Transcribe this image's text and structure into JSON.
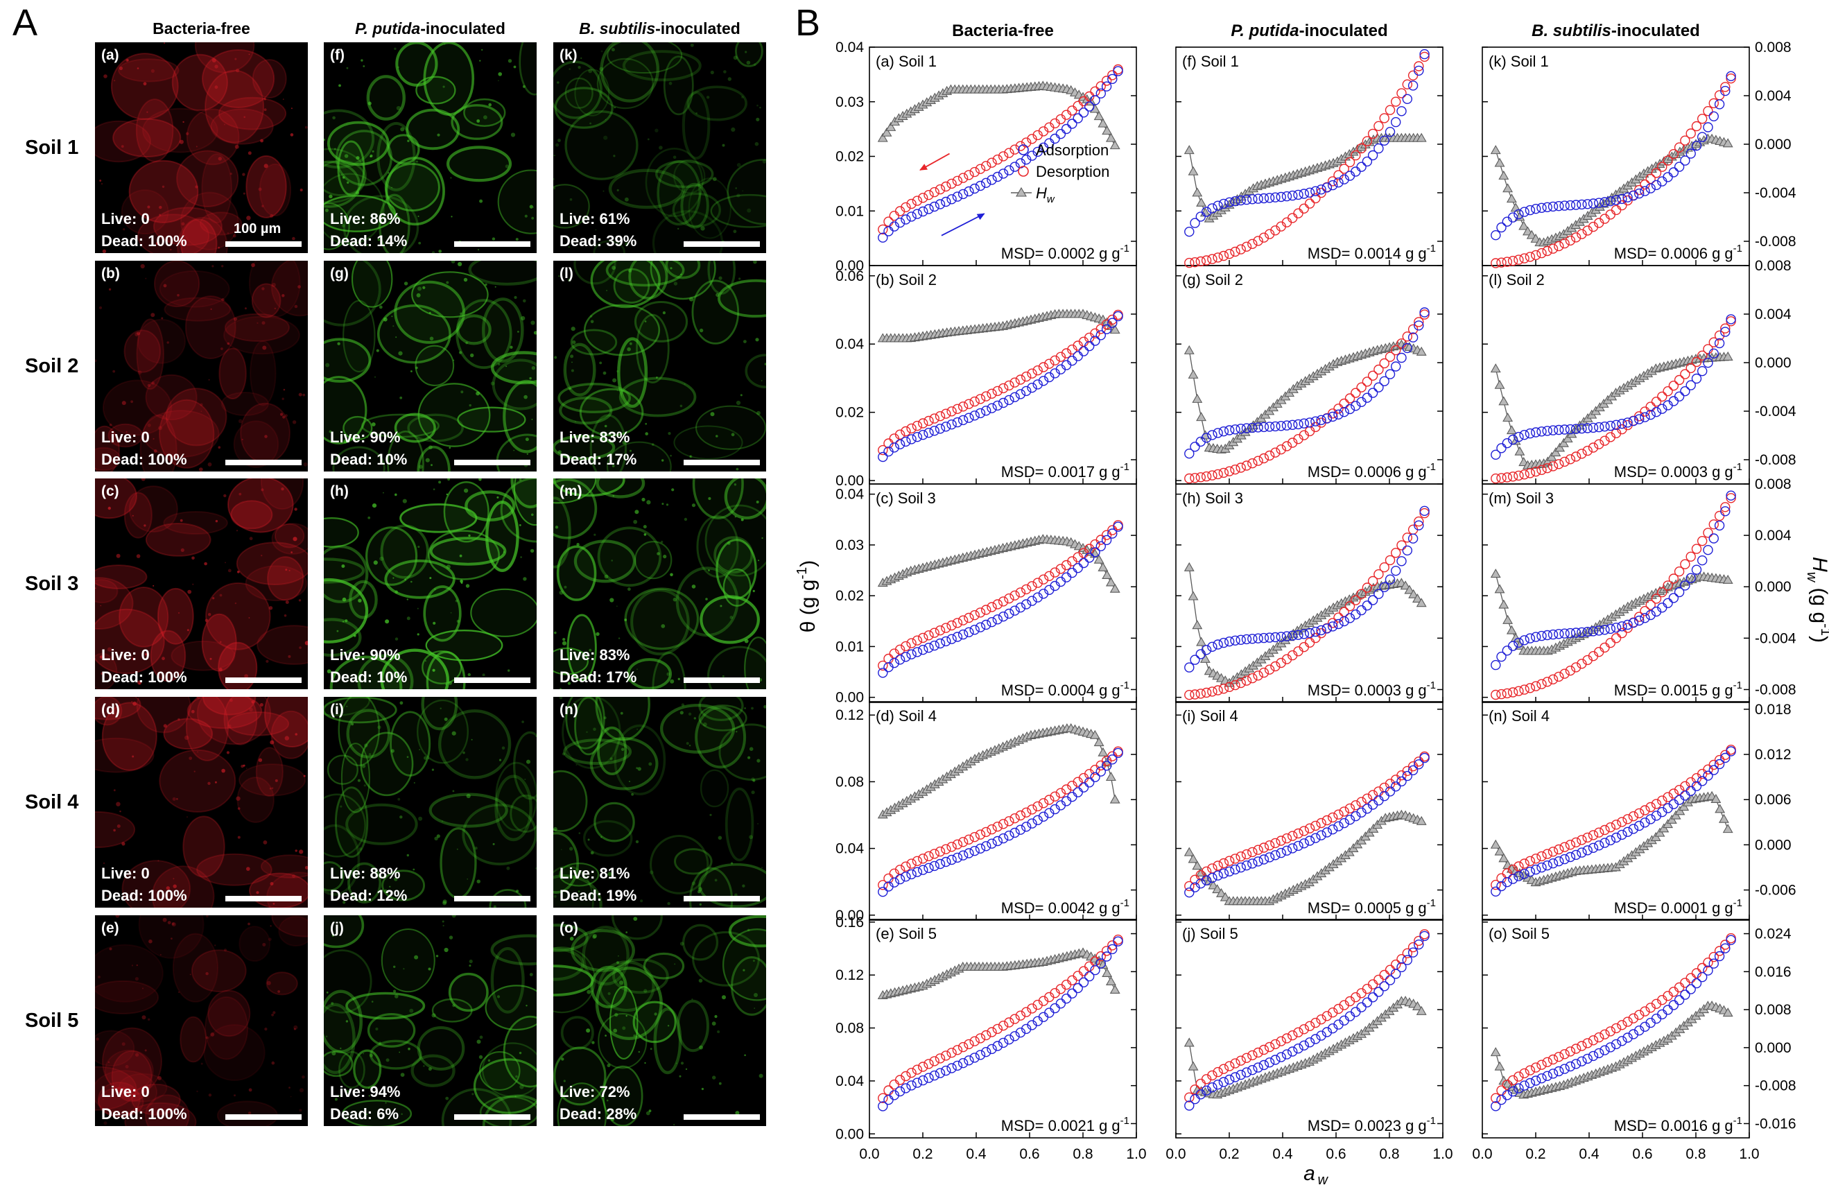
{
  "panel_labels": {
    "A": "A",
    "B": "B"
  },
  "col_headers": [
    {
      "pre": "",
      "italic": "",
      "post": "Bacteria-free"
    },
    {
      "pre": "",
      "italic": "P. putida",
      "post": "-inoculated"
    },
    {
      "pre": "",
      "italic": "B. subtilis",
      "post": "-inoculated"
    }
  ],
  "row_labels": [
    "Soil 1",
    "Soil 2",
    "Soil 3",
    "Soil 4",
    "Soil 5"
  ],
  "scale_bar_label": "100 µm",
  "micrographs": [
    {
      "id": "(a)",
      "col": 0,
      "row": 0,
      "live": "Live: 0",
      "dead": "Dead: 100%",
      "stain": "red",
      "intensity": 0.75
    },
    {
      "id": "(b)",
      "col": 0,
      "row": 1,
      "live": "Live: 0",
      "dead": "Dead: 100%",
      "stain": "red",
      "intensity": 0.55
    },
    {
      "id": "(c)",
      "col": 0,
      "row": 2,
      "live": "Live: 0",
      "dead": "Dead: 100%",
      "stain": "red",
      "intensity": 0.85
    },
    {
      "id": "(d)",
      "col": 0,
      "row": 3,
      "live": "Live: 0",
      "dead": "Dead: 100%",
      "stain": "red",
      "intensity": 0.8
    },
    {
      "id": "(e)",
      "col": 0,
      "row": 4,
      "live": "Live: 0",
      "dead": "Dead: 100%",
      "stain": "red",
      "intensity": 0.45
    },
    {
      "id": "(f)",
      "col": 1,
      "row": 0,
      "live": "Live: 86%",
      "dead": "Dead: 14%",
      "stain": "green",
      "intensity": 0.85
    },
    {
      "id": "(g)",
      "col": 1,
      "row": 1,
      "live": "Live: 90%",
      "dead": "Dead: 10%",
      "stain": "green",
      "intensity": 0.85
    },
    {
      "id": "(h)",
      "col": 1,
      "row": 2,
      "live": "Live: 90%",
      "dead": "Dead: 10%",
      "stain": "green",
      "intensity": 1.0
    },
    {
      "id": "(i)",
      "col": 1,
      "row": 3,
      "live": "Live: 88%",
      "dead": "Dead: 12%",
      "stain": "green",
      "intensity": 0.65
    },
    {
      "id": "(j)",
      "col": 1,
      "row": 4,
      "live": "Live: 94%",
      "dead": "Dead: 6%",
      "stain": "green",
      "intensity": 0.75
    },
    {
      "id": "(k)",
      "col": 2,
      "row": 0,
      "live": "Live: 61%",
      "dead": "Dead: 39%",
      "stain": "green",
      "intensity": 0.45
    },
    {
      "id": "(l)",
      "col": 2,
      "row": 1,
      "live": "Live: 83%",
      "dead": "Dead: 17%",
      "stain": "green",
      "intensity": 0.75
    },
    {
      "id": "(m)",
      "col": 2,
      "row": 2,
      "live": "Live: 83%",
      "dead": "Dead: 17%",
      "stain": "green",
      "intensity": 0.9
    },
    {
      "id": "(n)",
      "col": 2,
      "row": 3,
      "live": "Live: 81%",
      "dead": "Dead: 19%",
      "stain": "green",
      "intensity": 0.6
    },
    {
      "id": "(o)",
      "col": 2,
      "row": 4,
      "live": "Live: 72%",
      "dead": "Dead: 28%",
      "stain": "green",
      "intensity": 0.8
    }
  ],
  "chart_data": {
    "type": "scatter",
    "xlabel": "a",
    "xlabel_sub": "w",
    "ylabel_left": "θ (g g",
    "ylabel_left_sup": "-1",
    "ylabel_left_end": ")",
    "ylabel_right": "H",
    "ylabel_right_sub": "w",
    "ylabel_right_mid": " (g g",
    "ylabel_right_sup": "-1",
    "ylabel_right_end": ")",
    "xlim": [
      0.0,
      1.0
    ],
    "xticks": [
      0.0,
      0.2,
      0.4,
      0.6,
      0.8,
      1.0
    ],
    "xtick_labels": [
      "0.0",
      "0.2",
      "0.4",
      "0.6",
      "0.8",
      "1.0"
    ],
    "legend": {
      "placement": "panel (a), right of center",
      "adsorption": "Adsorption",
      "desorption": "Desorption",
      "hw": "H",
      "hw_sub": "w"
    },
    "colors": {
      "adsorption": "#1f1fd6",
      "desorption": "#e8262a",
      "hw": "#5a5a5a",
      "hw_fill": "#b8b8b8",
      "arrow_red": "#e8262a",
      "arrow_blue": "#1f1fd6"
    },
    "msd_prefix": "MSD= ",
    "msd_unit": " g g",
    "msd_unit_sup": "-1",
    "rows": [
      {
        "soil": "Soil 1",
        "ylim": [
          0.0,
          0.04
        ],
        "yticks": [
          "0.00",
          "0.01",
          "0.02",
          "0.03",
          "0.04"
        ],
        "yvals": [
          0,
          0.01,
          0.02,
          0.03,
          0.04
        ],
        "y2lim": [
          -0.01,
          0.008
        ],
        "y2ticks": [
          "-0.008",
          "-0.004",
          "0.000",
          "0.004",
          "0.008"
        ],
        "y2vals": [
          -0.008,
          -0.004,
          0,
          0.004,
          0.008
        ]
      },
      {
        "soil": "Soil 2",
        "ylim": [
          -0.001,
          0.063
        ],
        "yticks": [
          "0.00",
          "0.02",
          "0.04",
          "0.06"
        ],
        "yvals": [
          0,
          0.02,
          0.04,
          0.06
        ],
        "y2lim": [
          -0.01,
          0.008
        ],
        "y2ticks": [
          "-0.008",
          "-0.004",
          "0.000",
          "0.004",
          "0.008"
        ],
        "y2vals": [
          -0.008,
          -0.004,
          0,
          0.004,
          0.008
        ]
      },
      {
        "soil": "Soil 3",
        "ylim": [
          -0.001,
          0.042
        ],
        "yticks": [
          "0.00",
          "0.01",
          "0.02",
          "0.03",
          "0.04"
        ],
        "yvals": [
          0,
          0.01,
          0.02,
          0.03,
          0.04
        ],
        "y2lim": [
          -0.009,
          0.008
        ],
        "y2ticks": [
          "-0.008",
          "-0.004",
          "0.000",
          "0.004",
          "0.008"
        ],
        "y2vals": [
          -0.008,
          -0.004,
          0,
          0.004,
          0.008
        ]
      },
      {
        "soil": "Soil 4",
        "ylim": [
          -0.003,
          0.128
        ],
        "yticks": [
          "0.00",
          "0.04",
          "0.08",
          "0.12"
        ],
        "yvals": [
          0,
          0.04,
          0.08,
          0.12
        ],
        "y2lim": [
          -0.01,
          0.019
        ],
        "y2ticks": [
          "-0.006",
          "0.000",
          "0.006",
          "0.012",
          "0.018"
        ],
        "y2vals": [
          -0.006,
          0,
          0.006,
          0.012,
          0.018
        ]
      },
      {
        "soil": "Soil 5",
        "ylim": [
          -0.003,
          0.162
        ],
        "yticks": [
          "0.00",
          "0.04",
          "0.08",
          "0.12",
          "0.16"
        ],
        "yvals": [
          0,
          0.04,
          0.08,
          0.12,
          0.16
        ],
        "y2lim": [
          -0.019,
          0.027
        ],
        "y2ticks": [
          "-0.016",
          "-0.008",
          "0.000",
          "0.008",
          "0.016",
          "0.024"
        ],
        "y2vals": [
          -0.016,
          -0.008,
          0,
          0.008,
          0.016,
          0.024
        ]
      }
    ],
    "panels": [
      {
        "label": "(a) Soil 1",
        "col": 0,
        "row": 0,
        "msd": "0.0002",
        "theta_max": 0.0355,
        "ads_mid": 0.43,
        "des_mid": 0.52,
        "ads_k": 3.0,
        "des_k": 2.6,
        "hw": [
          [
            0.05,
            0.0005
          ],
          [
            0.1,
            0.002
          ],
          [
            0.3,
            0.0045
          ],
          [
            0.5,
            0.0045
          ],
          [
            0.65,
            0.0048
          ],
          [
            0.75,
            0.0045
          ],
          [
            0.83,
            0.0035
          ],
          [
            0.88,
            0.0015
          ],
          [
            0.93,
            -0.0005
          ]
        ],
        "legend": true,
        "arrows": true
      },
      {
        "label": "(f) Soil 1",
        "col": 1,
        "row": 0,
        "msd": "0.0014",
        "theta_max": 0.0385,
        "ads_mid": 0.5,
        "des_mid": 0.44,
        "ads_k": 5.0,
        "des_k": 3.2,
        "hw": [
          [
            0.05,
            -0.0005
          ],
          [
            0.08,
            -0.004
          ],
          [
            0.12,
            -0.0062
          ],
          [
            0.2,
            -0.005
          ],
          [
            0.3,
            -0.0035
          ],
          [
            0.45,
            -0.0025
          ],
          [
            0.6,
            -0.0015
          ],
          [
            0.75,
            0.0005
          ],
          [
            0.85,
            0.0005
          ],
          [
            0.93,
            0.0005
          ]
        ],
        "steep_ads": true
      },
      {
        "label": "(k) Soil 1",
        "col": 2,
        "row": 0,
        "msd": "0.0006",
        "theta_max": 0.0345,
        "ads_mid": 0.55,
        "des_mid": 0.46,
        "ads_k": 6.0,
        "des_k": 3.5,
        "hw": [
          [
            0.05,
            -0.0005
          ],
          [
            0.1,
            -0.004
          ],
          [
            0.16,
            -0.007
          ],
          [
            0.22,
            -0.0082
          ],
          [
            0.3,
            -0.0075
          ],
          [
            0.45,
            -0.005
          ],
          [
            0.6,
            -0.0025
          ],
          [
            0.75,
            -0.0005
          ],
          [
            0.85,
            0.0005
          ],
          [
            0.93,
            0.0
          ]
        ],
        "steep_ads": true
      },
      {
        "label": "(b) Soil 2",
        "col": 0,
        "row": 1,
        "msd": "0.0017",
        "theta_max": 0.048,
        "ads_mid": 0.43,
        "des_mid": 0.52,
        "ads_k": 3.0,
        "des_k": 2.6,
        "hw": [
          [
            0.05,
            0.002
          ],
          [
            0.15,
            0.002
          ],
          [
            0.3,
            0.0025
          ],
          [
            0.5,
            0.003
          ],
          [
            0.7,
            0.004
          ],
          [
            0.8,
            0.004
          ],
          [
            0.88,
            0.0035
          ],
          [
            0.93,
            0.0025
          ]
        ]
      },
      {
        "label": "(g) Soil 2",
        "col": 1,
        "row": 1,
        "msd": "0.0006",
        "theta_max": 0.049,
        "ads_mid": 0.52,
        "des_mid": 0.44,
        "ads_k": 5.5,
        "des_k": 3.3,
        "hw": [
          [
            0.05,
            0.001
          ],
          [
            0.08,
            -0.003
          ],
          [
            0.12,
            -0.007
          ],
          [
            0.18,
            -0.0072
          ],
          [
            0.3,
            -0.005
          ],
          [
            0.45,
            -0.002
          ],
          [
            0.6,
            0.0
          ],
          [
            0.75,
            0.001
          ],
          [
            0.85,
            0.0015
          ],
          [
            0.93,
            0.0008
          ]
        ],
        "steep_ads": true
      },
      {
        "label": "(l) Soil 2",
        "col": 2,
        "row": 1,
        "msd": "0.0003",
        "theta_max": 0.047,
        "ads_mid": 0.54,
        "des_mid": 0.46,
        "ads_k": 6.0,
        "des_k": 3.5,
        "hw": [
          [
            0.05,
            -0.0005
          ],
          [
            0.1,
            -0.005
          ],
          [
            0.16,
            -0.0085
          ],
          [
            0.24,
            -0.0083
          ],
          [
            0.35,
            -0.0055
          ],
          [
            0.5,
            -0.0025
          ],
          [
            0.65,
            -0.0005
          ],
          [
            0.8,
            0.0003
          ],
          [
            0.93,
            0.0005
          ]
        ],
        "steep_ads": true
      },
      {
        "label": "(c) Soil 3",
        "col": 0,
        "row": 2,
        "msd": "0.0004",
        "theta_max": 0.0335,
        "ads_mid": 0.43,
        "des_mid": 0.52,
        "ads_k": 3.0,
        "des_k": 2.6,
        "hw": [
          [
            0.05,
            0.0003
          ],
          [
            0.15,
            0.0012
          ],
          [
            0.3,
            0.002
          ],
          [
            0.5,
            0.003
          ],
          [
            0.65,
            0.0037
          ],
          [
            0.75,
            0.0035
          ],
          [
            0.85,
            0.0025
          ],
          [
            0.9,
            0.0005
          ],
          [
            0.93,
            -0.0005
          ]
        ]
      },
      {
        "label": "(h) Soil 3",
        "col": 1,
        "row": 2,
        "msd": "0.0003",
        "theta_max": 0.0365,
        "ads_mid": 0.52,
        "des_mid": 0.44,
        "ads_k": 5.5,
        "des_k": 3.2,
        "hw": [
          [
            0.05,
            0.0015
          ],
          [
            0.08,
            -0.003
          ],
          [
            0.12,
            -0.0065
          ],
          [
            0.2,
            -0.0075
          ],
          [
            0.3,
            -0.006
          ],
          [
            0.45,
            -0.0035
          ],
          [
            0.6,
            -0.0015
          ],
          [
            0.75,
            0.0
          ],
          [
            0.85,
            0.0003
          ],
          [
            0.93,
            -0.0015
          ]
        ],
        "steep_ads": true
      },
      {
        "label": "(m) Soil 3",
        "col": 2,
        "row": 2,
        "msd": "0.0015",
        "theta_max": 0.0395,
        "ads_mid": 0.54,
        "des_mid": 0.46,
        "ads_k": 6.0,
        "des_k": 3.5,
        "hw": [
          [
            0.05,
            0.001
          ],
          [
            0.1,
            -0.003
          ],
          [
            0.15,
            -0.005
          ],
          [
            0.25,
            -0.005
          ],
          [
            0.4,
            -0.0035
          ],
          [
            0.55,
            -0.0015
          ],
          [
            0.7,
            0.0
          ],
          [
            0.82,
            0.0008
          ],
          [
            0.93,
            0.0005
          ]
        ],
        "steep_ads": true
      },
      {
        "label": "(d) Soil 4",
        "col": 0,
        "row": 3,
        "msd": "0.0042",
        "theta_max": 0.097,
        "ads_mid": 0.43,
        "des_mid": 0.52,
        "ads_k": 3.0,
        "des_k": 2.6,
        "hw": [
          [
            0.05,
            0.004
          ],
          [
            0.2,
            0.007
          ],
          [
            0.4,
            0.0115
          ],
          [
            0.6,
            0.0145
          ],
          [
            0.75,
            0.0155
          ],
          [
            0.85,
            0.0145
          ],
          [
            0.9,
            0.01
          ],
          [
            0.93,
            0.004
          ]
        ]
      },
      {
        "label": "(i) Soil 4",
        "col": 1,
        "row": 3,
        "msd": "0.0005",
        "theta_max": 0.094,
        "ads_mid": 0.48,
        "des_mid": 0.52,
        "ads_k": 3.0,
        "des_k": 3.0,
        "hw": [
          [
            0.05,
            -0.001
          ],
          [
            0.1,
            -0.004
          ],
          [
            0.2,
            -0.0075
          ],
          [
            0.35,
            -0.0075
          ],
          [
            0.5,
            -0.005
          ],
          [
            0.65,
            -0.001
          ],
          [
            0.78,
            0.0035
          ],
          [
            0.85,
            0.004
          ],
          [
            0.93,
            0.003
          ]
        ]
      },
      {
        "label": "(n) Soil 4",
        "col": 2,
        "row": 3,
        "msd": "0.0001",
        "theta_max": 0.098,
        "ads_mid": 0.48,
        "des_mid": 0.52,
        "ads_k": 3.0,
        "des_k": 3.0,
        "hw": [
          [
            0.05,
            0.0
          ],
          [
            0.1,
            -0.003
          ],
          [
            0.2,
            -0.005
          ],
          [
            0.35,
            -0.0035
          ],
          [
            0.5,
            -0.003
          ],
          [
            0.65,
            0.001
          ],
          [
            0.78,
            0.006
          ],
          [
            0.87,
            0.0065
          ],
          [
            0.93,
            0.0012
          ]
        ]
      },
      {
        "label": "(e) Soil 5",
        "col": 0,
        "row": 4,
        "msd": "0.0021",
        "theta_max": 0.145,
        "ads_mid": 0.43,
        "des_mid": 0.52,
        "ads_k": 3.0,
        "des_k": 2.6,
        "hw": [
          [
            0.05,
            0.011
          ],
          [
            0.2,
            0.013
          ],
          [
            0.35,
            0.017
          ],
          [
            0.5,
            0.017
          ],
          [
            0.65,
            0.018
          ],
          [
            0.8,
            0.02
          ],
          [
            0.87,
            0.018
          ],
          [
            0.93,
            0.011
          ]
        ]
      },
      {
        "label": "(j) Soil 5",
        "col": 1,
        "row": 4,
        "msd": "0.0023",
        "theta_max": 0.149,
        "ads_mid": 0.48,
        "des_mid": 0.52,
        "ads_k": 3.3,
        "des_k": 3.3,
        "hw": [
          [
            0.05,
            0.001
          ],
          [
            0.08,
            -0.009
          ],
          [
            0.15,
            -0.01
          ],
          [
            0.3,
            -0.007
          ],
          [
            0.5,
            -0.003
          ],
          [
            0.7,
            0.003
          ],
          [
            0.85,
            0.01
          ],
          [
            0.9,
            0.009
          ],
          [
            0.93,
            0.007
          ]
        ]
      },
      {
        "label": "(o) Soil 5",
        "col": 2,
        "row": 4,
        "msd": "0.0016",
        "theta_max": 0.146,
        "ads_mid": 0.48,
        "des_mid": 0.52,
        "ads_k": 3.3,
        "des_k": 3.3,
        "hw": [
          [
            0.05,
            -0.001
          ],
          [
            0.08,
            -0.007
          ],
          [
            0.15,
            -0.01
          ],
          [
            0.3,
            -0.008
          ],
          [
            0.5,
            -0.004
          ],
          [
            0.7,
            0.002
          ],
          [
            0.85,
            0.009
          ],
          [
            0.9,
            0.008
          ],
          [
            0.93,
            0.007
          ]
        ]
      }
    ]
  }
}
